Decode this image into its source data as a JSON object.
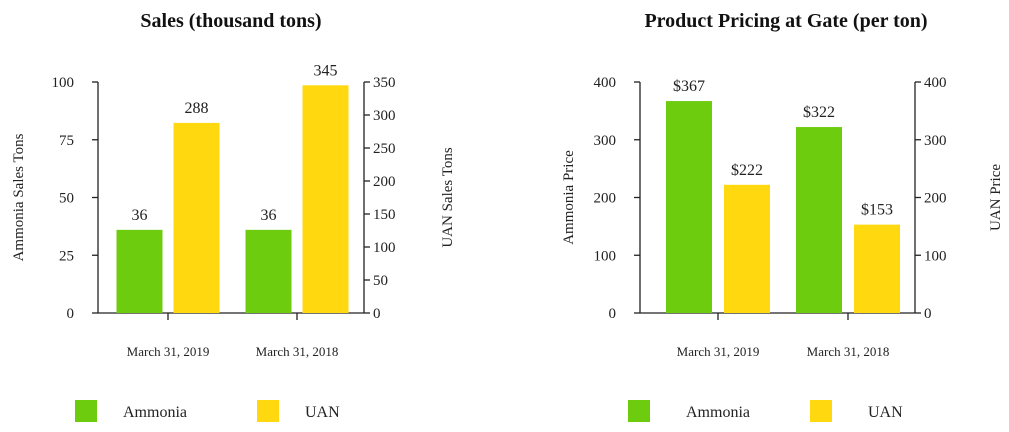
{
  "chart_data": [
    {
      "type": "bar",
      "title": "Sales (thousand tons)",
      "categories": [
        "March 31, 2019",
        "March 31, 2018"
      ],
      "series": [
        {
          "name": "Ammonia",
          "axis": "left",
          "color": "#6dcc0e",
          "values": [
            36,
            36
          ],
          "labels": [
            "36",
            "36"
          ]
        },
        {
          "name": "UAN",
          "axis": "right",
          "color": "#ffd80f",
          "values": [
            288,
            345
          ],
          "labels": [
            "288",
            "345"
          ]
        }
      ],
      "ylabel": "Ammonia Sales Tons",
      "ylim": [
        0,
        100
      ],
      "yticks": [
        "0",
        "25",
        "50",
        "75",
        "100"
      ],
      "ylabel_right": "UAN Sales Tons",
      "ylim_right": [
        0,
        350
      ],
      "yticks_right": [
        "0",
        "50",
        "100",
        "150",
        "200",
        "250",
        "300",
        "350"
      ],
      "legend": [
        "Ammonia",
        "UAN"
      ],
      "legend_position": "bottom",
      "grid": false
    },
    {
      "type": "bar",
      "title": "Product Pricing at Gate (per ton)",
      "categories": [
        "March 31, 2019",
        "March 31, 2018"
      ],
      "series": [
        {
          "name": "Ammonia",
          "axis": "left",
          "color": "#6dcc0e",
          "values": [
            367,
            322
          ],
          "labels": [
            "$367",
            "$322"
          ]
        },
        {
          "name": "UAN",
          "axis": "right",
          "color": "#ffd80f",
          "values": [
            222,
            153
          ],
          "labels": [
            "$222",
            "$153"
          ]
        }
      ],
      "ylabel": "Ammonia Price",
      "ylim": [
        0,
        400
      ],
      "yticks": [
        "0",
        "100",
        "200",
        "300",
        "400"
      ],
      "ylabel_right": "UAN Price",
      "ylim_right": [
        0,
        400
      ],
      "yticks_right": [
        "0",
        "100",
        "200",
        "300",
        "400"
      ],
      "legend": [
        "Ammonia",
        "UAN"
      ],
      "legend_position": "bottom",
      "grid": false
    }
  ]
}
